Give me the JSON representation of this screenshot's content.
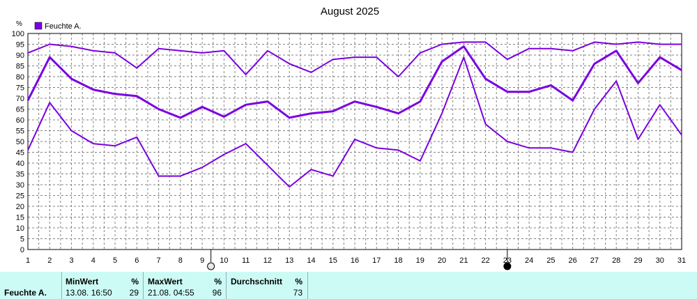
{
  "chart_data": {
    "type": "line",
    "title": "August 2025",
    "ylabel": "%",
    "ylim": [
      0,
      100
    ],
    "yticks": [
      0,
      5,
      10,
      15,
      20,
      25,
      30,
      35,
      40,
      45,
      50,
      55,
      60,
      65,
      70,
      75,
      80,
      85,
      90,
      95,
      100
    ],
    "x": [
      1,
      2,
      3,
      4,
      5,
      6,
      7,
      8,
      9,
      10,
      11,
      12,
      13,
      14,
      15,
      16,
      17,
      18,
      19,
      20,
      21,
      22,
      23,
      24,
      25,
      26,
      27,
      28,
      29,
      30,
      31
    ],
    "grid": true,
    "legend": {
      "label": "Feuchte A.",
      "position": "top-left"
    },
    "series": [
      {
        "role": "max",
        "values": [
          91,
          95,
          94,
          92,
          91,
          84,
          93,
          92,
          91,
          92,
          81,
          92,
          86,
          82,
          88,
          89,
          89,
          80,
          91,
          95,
          96,
          96,
          88,
          93,
          93,
          92,
          96,
          95,
          96,
          95,
          95
        ]
      },
      {
        "role": "mean",
        "values": [
          69,
          89,
          79,
          74,
          72,
          71,
          65,
          61,
          66,
          61.5,
          67,
          68.5,
          61,
          63,
          64,
          68.5,
          66,
          63,
          68.5,
          87,
          94,
          79,
          73,
          73,
          76,
          69,
          86,
          92,
          77,
          89,
          83
        ]
      },
      {
        "role": "min",
        "values": [
          46,
          68,
          55,
          49,
          48,
          52,
          34,
          34,
          38,
          44,
          49,
          39,
          29,
          37,
          34,
          51,
          47,
          46,
          41,
          63,
          89,
          58,
          50,
          47,
          47,
          45,
          65,
          78,
          51,
          67,
          53
        ]
      }
    ],
    "markers": [
      {
        "x": 9.4,
        "style": "open"
      },
      {
        "x": 23.0,
        "style": "filled"
      }
    ],
    "colors": {
      "line": "#7a00e0",
      "legend_box": "#7a00e0",
      "grid": "#808080"
    }
  },
  "stats": {
    "row_label": "Feuchte A.",
    "min": {
      "header": "MinWert",
      "unit": "%",
      "time": "13.08.  16:50",
      "value": "29"
    },
    "max": {
      "header": "MaxWert",
      "unit": "%",
      "time": "21.08.  04:55",
      "value": "96"
    },
    "avg": {
      "header": "Durchschnitt",
      "unit": "%",
      "value": "73"
    }
  }
}
